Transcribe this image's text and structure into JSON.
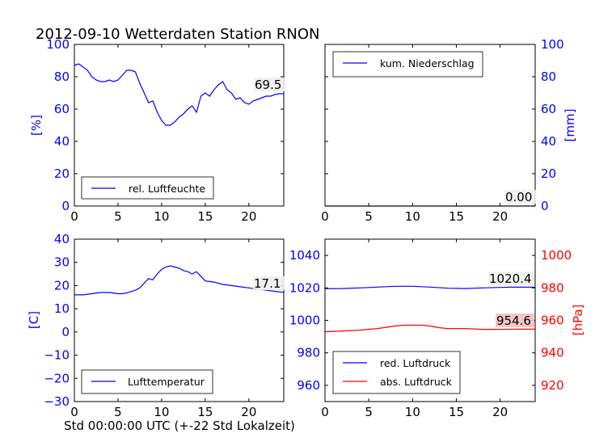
{
  "title": "2012-09-10 Wetterdaten Station RNON",
  "xlabel": "Std 00:00:00 UTC (+-22 Std Lokalzeit)",
  "colors": {
    "blue": "#0000ff",
    "red": "#ff0000",
    "annoBg": "#eeeeee",
    "pressAnnoBg": "#f4c0c0"
  },
  "chart_data": [
    {
      "id": "humidity",
      "type": "line",
      "xlim": [
        0,
        24
      ],
      "ylim": [
        0,
        100
      ],
      "xticks": [
        "0",
        "5",
        "10",
        "15",
        "20"
      ],
      "yticks": [
        "0",
        "20",
        "40",
        "60",
        "80",
        "100"
      ],
      "ylabel": "[%]",
      "legend_position": "lower center",
      "annotation": "69.5",
      "series": [
        {
          "name": "rel. Luftfeuchte",
          "color": "#0000ff",
          "x": [
            0,
            0.5,
            1,
            1.5,
            2,
            2.5,
            3,
            3.5,
            4,
            4.5,
            5,
            5.5,
            6,
            6.5,
            7,
            7.5,
            8,
            8.5,
            9,
            9.5,
            10,
            10.5,
            11,
            11.5,
            12,
            12.5,
            13,
            13.5,
            14,
            14.5,
            15,
            15.5,
            16,
            16.5,
            17,
            17.5,
            18,
            18.5,
            19,
            19.5,
            20,
            20.5,
            21,
            21.5,
            22,
            22.5,
            23,
            23.5,
            24
          ],
          "y": [
            87,
            88,
            86,
            84,
            80,
            78,
            77,
            77,
            78,
            77,
            78,
            81,
            84,
            84,
            83,
            76,
            70,
            64,
            65,
            58,
            53,
            50,
            50,
            52,
            55,
            57,
            60,
            62,
            58,
            68,
            70,
            68,
            72,
            75,
            77,
            72,
            70,
            66,
            67,
            64,
            63,
            65,
            66,
            67,
            68,
            68,
            69,
            69.5,
            69.5
          ]
        }
      ]
    },
    {
      "id": "precip",
      "type": "line",
      "xlim": [
        0,
        24
      ],
      "ylim": [
        0,
        100
      ],
      "xticks": [
        "0",
        "5",
        "10",
        "15",
        "20"
      ],
      "yticks": [
        "0",
        "20",
        "40",
        "60",
        "80",
        "100"
      ],
      "ylabel": "[mm]",
      "legend_position": "upper left",
      "annotation": "0.00",
      "series": [
        {
          "name": "kum. Niederschlag",
          "color": "#0000ff",
          "x": [
            0,
            24
          ],
          "y": [
            0,
            0
          ]
        }
      ]
    },
    {
      "id": "temperature",
      "type": "line",
      "xlim": [
        0,
        24
      ],
      "ylim": [
        -30,
        40
      ],
      "xticks": [
        "0",
        "5",
        "10",
        "15",
        "20"
      ],
      "yticks": [
        "−30",
        "−20",
        "−10",
        "0",
        "10",
        "20",
        "30",
        "40"
      ],
      "ylabel": "[C]",
      "legend_position": "lower center",
      "annotation": "17.1",
      "series": [
        {
          "name": "Lufttemperatur",
          "color": "#0000ff",
          "x": [
            0,
            1,
            2,
            3,
            4,
            5,
            5.5,
            6,
            7,
            7.5,
            8,
            8.5,
            9,
            9.5,
            10,
            10.5,
            11,
            11.5,
            12,
            12.5,
            13,
            13.5,
            14,
            14.5,
            15,
            16,
            17,
            18,
            19,
            20,
            21,
            22,
            23,
            24
          ],
          "y": [
            16,
            16,
            16.5,
            17,
            17,
            16.5,
            16.5,
            16.8,
            18,
            19,
            21,
            23,
            22.5,
            25,
            27,
            28,
            28.5,
            28,
            27.5,
            26.5,
            26,
            25,
            26,
            24,
            22,
            21.5,
            20.5,
            20,
            19.5,
            19,
            18.5,
            18,
            17.5,
            17.1
          ]
        }
      ]
    },
    {
      "id": "pressure",
      "type": "line",
      "xlim": [
        0,
        24
      ],
      "ylim": [
        950,
        1050
      ],
      "xticks": [
        "0",
        "5",
        "10",
        "15",
        "20"
      ],
      "yticks": [
        "960",
        "980",
        "1000",
        "1020",
        "1040"
      ],
      "y2lim": [
        910,
        1010
      ],
      "y2ticks": [
        "920",
        "940",
        "960",
        "980",
        "1000"
      ],
      "y2label": "[hPa]",
      "legend_position": "lower left",
      "annotation": "1020.4",
      "annotation2": "954.6",
      "series": [
        {
          "name": "red. Luftdruck",
          "color": "#0000ff",
          "axis": "left",
          "x": [
            0,
            2,
            4,
            6,
            8,
            10,
            12,
            14,
            16,
            18,
            20,
            22,
            24
          ],
          "y": [
            1019.5,
            1019.6,
            1020,
            1020.5,
            1021,
            1021,
            1020.5,
            1019.8,
            1019.6,
            1020,
            1020.3,
            1020.5,
            1020.4
          ]
        },
        {
          "name": "abs. Luftdruck",
          "color": "#ff0000",
          "axis": "right",
          "x": [
            0,
            2,
            4,
            6,
            8,
            9,
            10,
            11,
            12,
            13,
            14,
            15,
            16,
            18,
            20,
            22,
            24
          ],
          "y": [
            953,
            953.5,
            954,
            955,
            956.5,
            957,
            957,
            957,
            956.5,
            955.5,
            955,
            955,
            955,
            954.5,
            954.5,
            954.6,
            954.6
          ]
        }
      ]
    }
  ]
}
